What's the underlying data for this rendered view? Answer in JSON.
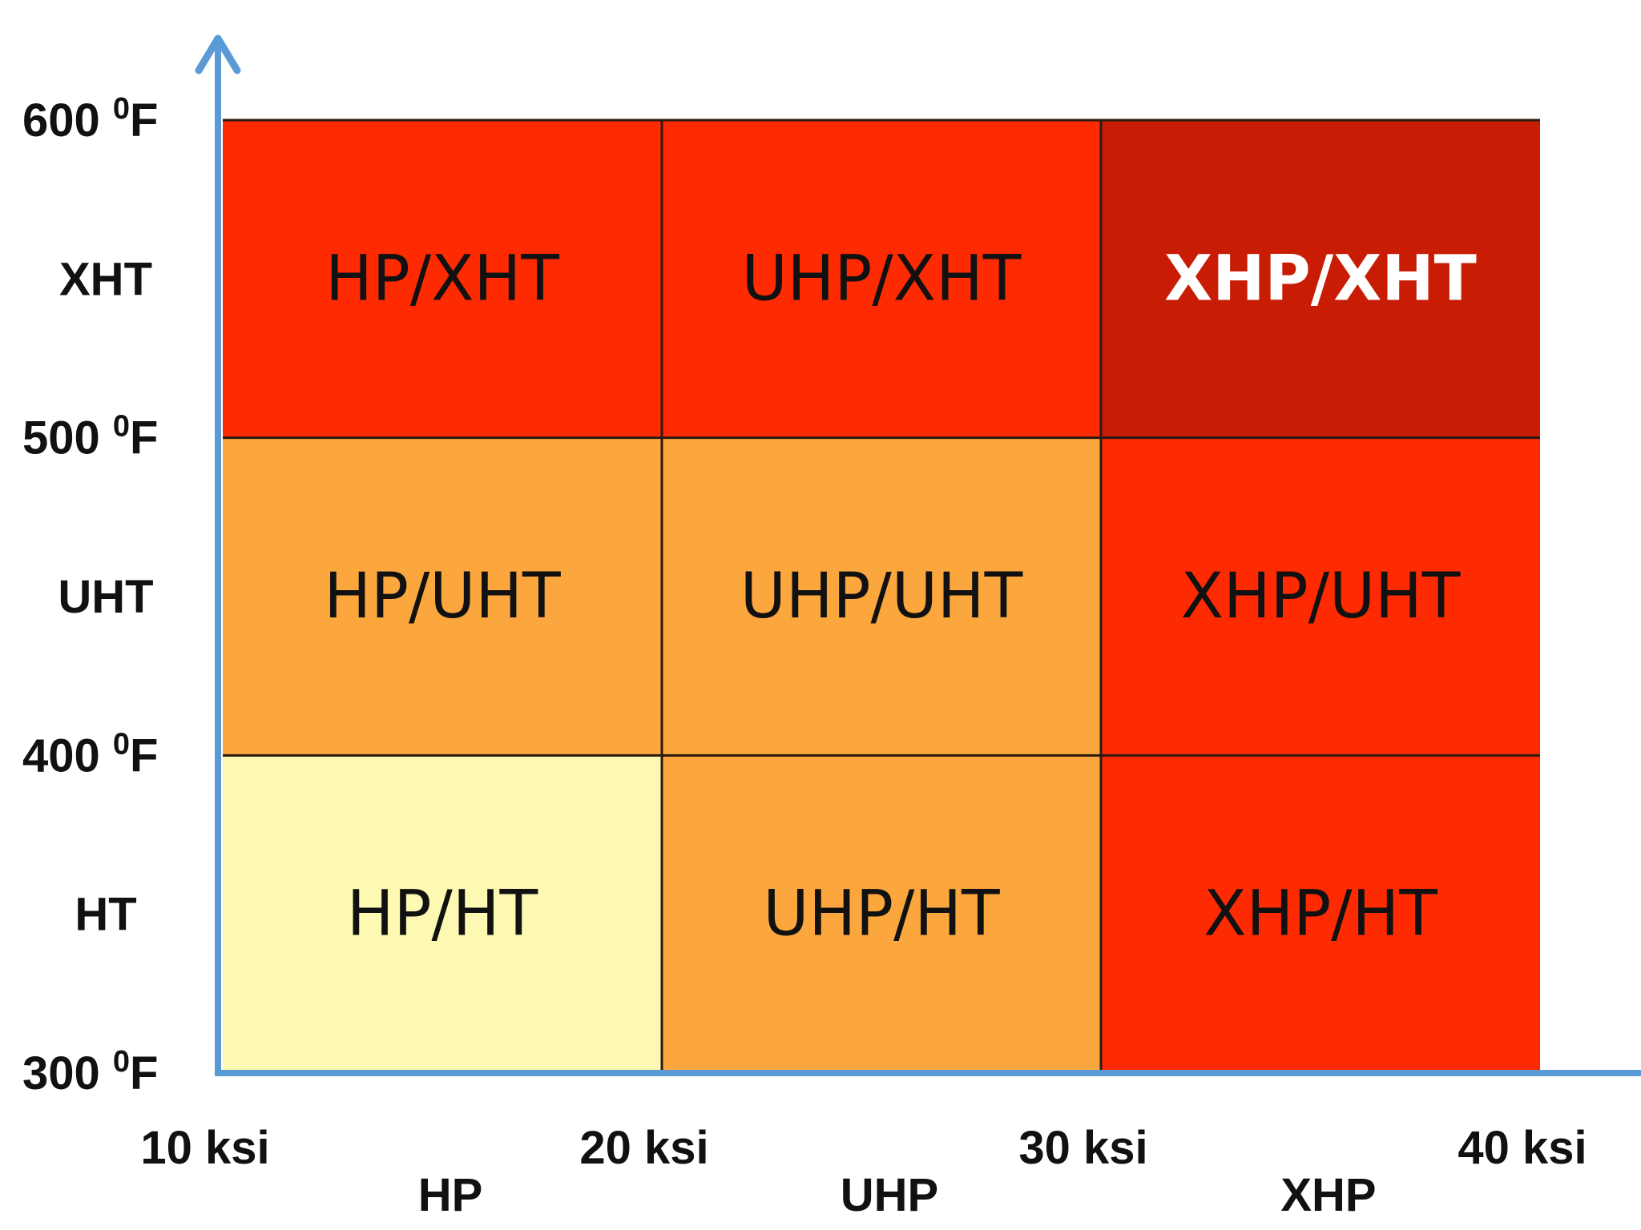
{
  "chart_data": {
    "type": "heatmap",
    "title": "",
    "xlabel": "",
    "ylabel": "",
    "x_ticks": [
      {
        "value": 10,
        "label": "10 ksi"
      },
      {
        "value": 20,
        "label": "20 ksi"
      },
      {
        "value": 30,
        "label": "30 ksi"
      },
      {
        "value": 40,
        "label": "40 ksi"
      }
    ],
    "y_ticks": [
      {
        "value": 300,
        "label": "300 ",
        "sup": "0",
        "unit": "F"
      },
      {
        "value": 400,
        "label": "400 ",
        "sup": "0",
        "unit": "F"
      },
      {
        "value": 500,
        "label": "500 ",
        "sup": "0",
        "unit": "F"
      },
      {
        "value": 600,
        "label": "600 ",
        "sup": "0",
        "unit": "F"
      }
    ],
    "x_categories": [
      {
        "label": "HP",
        "from": 10,
        "to": 20
      },
      {
        "label": "UHP",
        "from": 20,
        "to": 30
      },
      {
        "label": "XHP",
        "from": 30,
        "to": 40
      }
    ],
    "y_categories": [
      {
        "label": "HT",
        "from": 300,
        "to": 400
      },
      {
        "label": "UHT",
        "from": 400,
        "to": 500
      },
      {
        "label": "XHT",
        "from": 500,
        "to": 600
      }
    ],
    "cells": [
      {
        "x": 0,
        "y": 0,
        "label": "HP/HT",
        "color": "#fdf8b2",
        "text_color": "#111111"
      },
      {
        "x": 1,
        "y": 0,
        "label": "UHP/HT",
        "color": "#fba73e",
        "text_color": "#111111"
      },
      {
        "x": 2,
        "y": 0,
        "label": "XHP/HT",
        "color": "#fd2a02",
        "text_color": "#111111"
      },
      {
        "x": 0,
        "y": 1,
        "label": "HP/UHT",
        "color": "#fba73e",
        "text_color": "#111111"
      },
      {
        "x": 1,
        "y": 1,
        "label": "UHP/UHT",
        "color": "#fba73e",
        "text_color": "#111111"
      },
      {
        "x": 2,
        "y": 1,
        "label": "XHP/UHT",
        "color": "#fd2a02",
        "text_color": "#111111"
      },
      {
        "x": 0,
        "y": 2,
        "label": "HP/XHT",
        "color": "#fd2a02",
        "text_color": "#111111"
      },
      {
        "x": 1,
        "y": 2,
        "label": "UHP/XHT",
        "color": "#fd2a02",
        "text_color": "#111111"
      },
      {
        "x": 2,
        "y": 2,
        "label": "XHP/XHT",
        "color": "#c81d04",
        "text_color": "#ffffff"
      }
    ],
    "axis_color": "#5b9bd5",
    "xlim": [
      10,
      40
    ],
    "ylim": [
      300,
      600
    ]
  }
}
